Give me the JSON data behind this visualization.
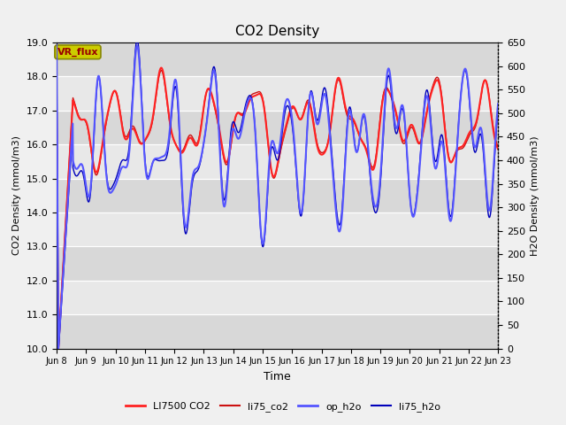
{
  "title": "CO2 Density",
  "ylabel_left": "CO2 Density (mmol/m3)",
  "ylabel_right": "H2O Density (mmol/m3)",
  "xlabel": "Time",
  "ylim_left": [
    10.0,
    19.0
  ],
  "ylim_right": [
    0,
    650
  ],
  "yticks_left": [
    10.0,
    11.0,
    12.0,
    13.0,
    14.0,
    15.0,
    16.0,
    17.0,
    18.0,
    19.0
  ],
  "yticks_right": [
    0,
    50,
    100,
    150,
    200,
    250,
    300,
    350,
    400,
    450,
    500,
    550,
    600,
    650
  ],
  "xtick_labels": [
    "Jun 8",
    "Jun 9",
    "Jun 10",
    "Jun 11",
    "Jun 12",
    "Jun 13",
    "Jun 14",
    "Jun 15",
    "Jun 16",
    "Jun 17",
    "Jun 18",
    "Jun 19",
    "Jun 20",
    "Jun 21",
    "Jun 22",
    "Jun 23"
  ],
  "vr_flux_label": "VR_flux",
  "legend_entries": [
    "LI7500 CO2",
    "li75_co2",
    "op_h2o",
    "li75_h2o"
  ],
  "co2_color1": "#ff2222",
  "co2_color2": "#cc1111",
  "h2o_color1": "#5555ff",
  "h2o_color2": "#0000bb",
  "bg_color": "#f0f0f0",
  "stripe_dark": "#d8d8d8",
  "stripe_light": "#e8e8e8",
  "vr_flux_bg": "#cccc00",
  "vr_flux_border": "#888800",
  "vr_flux_text": "#990000"
}
